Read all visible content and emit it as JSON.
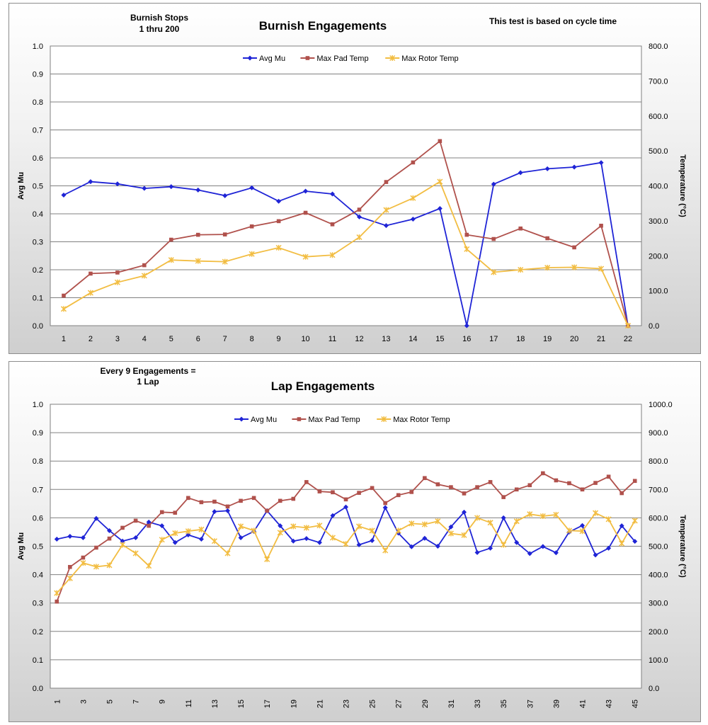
{
  "chart_data": [
    {
      "type": "line",
      "title": "Burnish Engagements",
      "annotations": [
        "Burnish Stops",
        "1  thru  200",
        "This test is based on cycle time"
      ],
      "xlabel": "",
      "ylabel": "Avg Mu",
      "y2label": "Temperature (°C)",
      "ylim": [
        0,
        1.0
      ],
      "y2lim": [
        0,
        800
      ],
      "ytick_labels": [
        "0.0",
        "0.1",
        "0.2",
        "0.3",
        "0.4",
        "0.5",
        "0.6",
        "0.7",
        "0.8",
        "0.9",
        "1.0"
      ],
      "y2tick_labels": [
        "0.0",
        "100.0",
        "200.0",
        "300.0",
        "400.0",
        "500.0",
        "600.0",
        "700.0",
        "800.0"
      ],
      "categories": [
        "1",
        "2",
        "3",
        "4",
        "5",
        "6",
        "7",
        "8",
        "9",
        "10",
        "11",
        "12",
        "13",
        "14",
        "15",
        "16",
        "17",
        "18",
        "19",
        "20",
        "21",
        "22"
      ],
      "legend_position": "top-center",
      "series": [
        {
          "name": "Avg Mu",
          "axis": "left",
          "color": "#1f24d6",
          "marker": "diamond",
          "values": [
            0.467,
            0.515,
            0.507,
            0.491,
            0.497,
            0.485,
            0.465,
            0.493,
            0.445,
            0.481,
            0.471,
            0.389,
            0.358,
            0.381,
            0.419,
            0.0,
            0.506,
            0.547,
            0.561,
            0.567,
            0.583,
            0.0
          ]
        },
        {
          "name": "Max Pad Temp",
          "axis": "right",
          "color": "#b0514c",
          "marker": "square",
          "values": [
            86,
            149,
            152,
            173,
            246,
            260,
            261,
            284,
            299,
            323,
            290,
            332,
            411,
            467,
            528,
            260,
            248,
            278,
            250,
            224,
            286,
            0
          ]
        },
        {
          "name": "Max Rotor Temp",
          "axis": "right",
          "color": "#f2bd42",
          "marker": "star",
          "values": [
            48,
            94,
            124,
            143,
            188,
            185,
            183,
            205,
            223,
            197,
            202,
            253,
            331,
            365,
            412,
            219,
            153,
            160,
            166,
            167,
            163,
            0
          ]
        }
      ]
    },
    {
      "type": "line",
      "title": "Lap Engagements",
      "annotations": [
        "Every 9 Engagements =",
        "1 Lap"
      ],
      "xlabel": "",
      "ylabel": "Avg Mu",
      "y2label": "Temperature (°C)",
      "ylim": [
        0,
        1.0
      ],
      "y2lim": [
        0,
        1000
      ],
      "ytick_labels": [
        "0.0",
        "0.1",
        "0.2",
        "0.3",
        "0.4",
        "0.5",
        "0.6",
        "0.7",
        "0.8",
        "0.9",
        "1.0"
      ],
      "y2tick_labels": [
        "0.0",
        "100.0",
        "200.0",
        "300.0",
        "400.0",
        "500.0",
        "600.0",
        "700.0",
        "800.0",
        "900.0",
        "1000.0"
      ],
      "x_tick_labels": [
        "1",
        "3",
        "5",
        "7",
        "9",
        "11",
        "13",
        "15",
        "17",
        "19",
        "21",
        "23",
        "25",
        "27",
        "29",
        "31",
        "33",
        "35",
        "37",
        "39",
        "41",
        "43",
        "45"
      ],
      "x": [
        1,
        2,
        3,
        4,
        5,
        6,
        7,
        8,
        9,
        10,
        11,
        12,
        13,
        14,
        15,
        16,
        17,
        18,
        19,
        20,
        21,
        22,
        23,
        24,
        25,
        26,
        27,
        28,
        29,
        30,
        31,
        32,
        33,
        34,
        35,
        36,
        37,
        38,
        39,
        40,
        41,
        42,
        43,
        44,
        45
      ],
      "legend_position": "top-center",
      "series": [
        {
          "name": "Avg Mu",
          "axis": "left",
          "color": "#1f24d6",
          "marker": "diamond",
          "values": [
            0.525,
            0.535,
            0.53,
            0.598,
            0.555,
            0.518,
            0.53,
            0.585,
            0.572,
            0.513,
            0.54,
            0.525,
            0.622,
            0.625,
            0.53,
            0.552,
            0.625,
            0.572,
            0.518,
            0.527,
            0.513,
            0.608,
            0.638,
            0.505,
            0.52,
            0.636,
            0.546,
            0.498,
            0.528,
            0.5,
            0.568,
            0.62,
            0.478,
            0.493,
            0.6,
            0.513,
            0.474,
            0.499,
            0.477,
            0.55,
            0.573,
            0.469,
            0.493,
            0.572,
            0.517
          ]
        },
        {
          "name": "Max Pad Temp",
          "axis": "right",
          "color": "#b0514c",
          "marker": "square",
          "values": [
            305,
            427,
            460,
            495,
            527,
            565,
            590,
            572,
            620,
            618,
            670,
            655,
            657,
            640,
            660,
            670,
            625,
            660,
            667,
            726,
            693,
            690,
            665,
            688,
            705,
            652,
            680,
            691,
            740,
            718,
            708,
            686,
            708,
            726,
            673,
            700,
            715,
            757,
            732,
            722,
            700,
            723,
            745,
            687,
            730
          ]
        },
        {
          "name": "Max Rotor Temp",
          "axis": "right",
          "color": "#f2bd42",
          "marker": "star",
          "values": [
            335,
            387,
            441,
            428,
            433,
            505,
            475,
            431,
            523,
            546,
            553,
            559,
            518,
            475,
            570,
            555,
            454,
            548,
            570,
            565,
            573,
            530,
            508,
            570,
            555,
            485,
            555,
            580,
            577,
            588,
            545,
            539,
            600,
            583,
            505,
            588,
            613,
            606,
            611,
            555,
            553,
            617,
            595,
            510,
            590
          ]
        }
      ]
    }
  ]
}
